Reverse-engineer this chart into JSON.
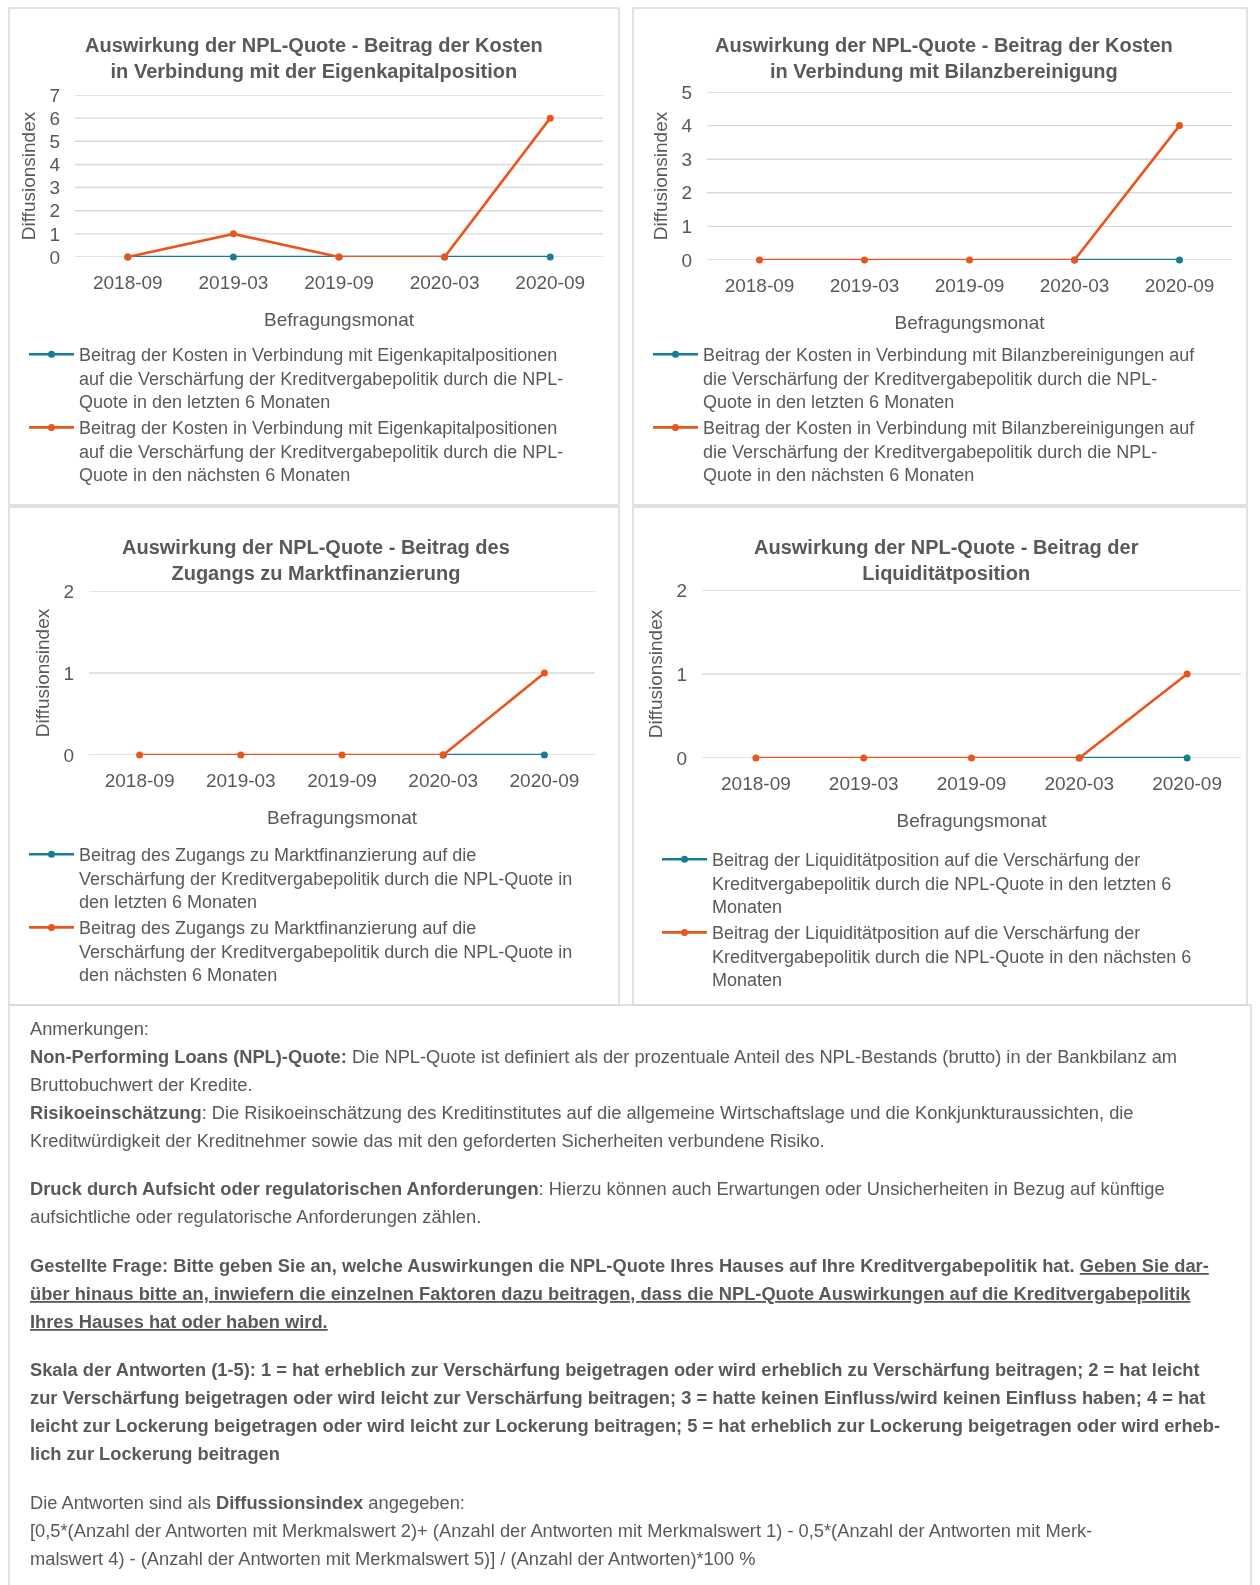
{
  "chart_data": [
    {
      "type": "line",
      "title": "Auswirkung der NPL-Quote - Beitrag der Kosten in Verbindung mit der Eigenkapitalposition",
      "xlabel": "Befragungsmonat",
      "ylabel": "Diffusionsindex",
      "categories": [
        "2018-09",
        "2019-03",
        "2019-09",
        "2020-03",
        "2020-09"
      ],
      "ylim": [
        0,
        7
      ],
      "yticks": [
        0,
        1,
        2,
        3,
        4,
        5,
        6,
        7
      ],
      "grid": "y",
      "legend": "bottom",
      "marker": "circle",
      "line_style": "solid",
      "series": [
        {
          "name": "Beitrag der Kosten in Verbindung mit Eigenkapitalpositionen auf die Verschärfung der Kreditvergabepolitik durch die NPL-Quote in den letzten 6 Monaten",
          "color": "#177c96",
          "values": [
            0,
            0,
            0,
            0,
            0
          ]
        },
        {
          "name": "Beitrag der Kosten in Verbindung mit Eigenkapitalpositionen auf die Verschärfung der Kreditvergabepolitik durch die NPL-Quote in den nächsten 6 Monaten",
          "color": "#e8561e",
          "values": [
            0,
            1,
            0,
            0,
            6
          ]
        }
      ]
    },
    {
      "type": "line",
      "title": "Auswirkung der NPL-Quote - Beitrag der Kosten in Verbindung mit Bilanzbereinigung",
      "xlabel": "Befragungsmonat",
      "ylabel": "Diffusionsindex",
      "categories": [
        "2018-09",
        "2019-03",
        "2019-09",
        "2020-03",
        "2020-09"
      ],
      "ylim": [
        0,
        5
      ],
      "yticks": [
        0,
        1,
        2,
        3,
        4,
        5
      ],
      "grid": "y",
      "legend": "bottom",
      "marker": "circle",
      "line_style": "solid",
      "series": [
        {
          "name": "Beitrag der Kosten in Verbindung mit Bilanzbereinigungen auf die Verschärfung der Kreditvergabepolitik durch die NPL-Quote in den letzten 6 Monaten",
          "color": "#177c96",
          "values": [
            null,
            null,
            null,
            0,
            0
          ]
        },
        {
          "name": "Beitrag der Kosten in Verbindung mit Bilanzbereinigungen auf die Verschärfung der Kreditvergabepolitik durch die NPL-Quote in den nächsten 6 Monaten",
          "color": "#e8561e",
          "values": [
            0,
            0,
            0,
            0,
            4
          ]
        }
      ]
    },
    {
      "type": "line",
      "title": "Auswirkung der NPL-Quote - Beitrag des Zugangs zu Marktfinanzierung",
      "xlabel": "Befragungsmonat",
      "ylabel": "Diffusionsindex",
      "categories": [
        "2018-09",
        "2019-03",
        "2019-09",
        "2020-03",
        "2020-09"
      ],
      "ylim": [
        0,
        2
      ],
      "yticks": [
        0,
        1,
        2
      ],
      "grid": "y",
      "legend": "bottom",
      "marker": "circle",
      "line_style": "solid",
      "series": [
        {
          "name": "Beitrag des Zugangs zu Marktfinanzierung auf die Verschärfung der Kreditvergabepolitik durch die NPL-Quote in den letzten 6 Monaten",
          "color": "#177c96",
          "values": [
            null,
            null,
            null,
            0,
            0
          ]
        },
        {
          "name": "Beitrag des Zugangs zu Marktfinanzierung auf die Verschärfung der Kreditvergabepolitik durch die NPL-Quote in den nächsten 6 Monaten",
          "color": "#e8561e",
          "values": [
            0,
            0,
            0,
            0,
            1
          ]
        }
      ]
    },
    {
      "type": "line",
      "title": "Auswirkung der NPL-Quote - Beitrag der Liquiditätposition",
      "xlabel": "Befragungsmonat",
      "ylabel": "Diffusionsindex",
      "categories": [
        "2018-09",
        "2019-03",
        "2019-09",
        "2020-03",
        "2020-09"
      ],
      "ylim": [
        0,
        2
      ],
      "yticks": [
        0,
        1,
        2
      ],
      "grid": "y",
      "legend": "bottom",
      "marker": "circle",
      "line_style": "solid",
      "series": [
        {
          "name": "Beitrag der Liquiditätposition auf die Verschärfung der Kreditvergabepolitik durch die NPL-Quote in den letzten 6 Monaten",
          "color": "#177c96",
          "values": [
            null,
            null,
            null,
            0,
            0
          ]
        },
        {
          "name": "Beitrag der Liquiditätposition auf die Verschärfung der Kreditvergabepolitik durch die NPL-Quote in den nächsten 6 Monaten",
          "color": "#e8561e",
          "values": [
            0,
            0,
            0,
            0,
            1
          ]
        }
      ]
    },
    {
      "type": "other",
      "annotations": [
        "Anmerkungen:\nNon-Performing Loans (NPL)-Quote: Die NPL-Quote ist definiert als der prozentuale Anteil des NPL-Bestands (brutto) in der Bankbilanz am\nBruttobuchwert der Kredite.\nRisikoeinschätzung: Die Risikoeinschätzung des Kreditinstitutes auf die allgemeine Wirtschaftslage und die Konkjunkturaussichten, die\nKreditwürdigkeit der Kreditnehmer sowie das mit den geforderten Sicherheiten verbundene Risiko.",
        "Druck durch Aufsicht oder regulatorischen Anforderungen: Hierzu können auch Erwartungen oder Unsicherheiten in Bezug auf künftige\naufsichtliche oder regulatorische Anforderungen zählen.",
        "Gestellte Frage: Bitte geben Sie an, welche Auswirkungen die NPL-Quote Ihres Hauses auf Ihre Kreditvergabepolitik hat. Geben Sie dar-\nüber hinaus bitte an, inwiefern die einzelnen Faktoren dazu beitragen, dass die NPL-Quote Auswirkungen auf die Kreditvergabepolitik\nIhres Hauses hat oder haben wird.",
        "Skala der Antworten (1-5): 1 = hat erheblich zur Verschärfung beigetragen oder wird erheblich zu Verschärfung beitragen; 2 = hat leicht\nzur Verschärfung beigetragen oder wird leicht zur Verschärfung beitragen; 3 = hatte keinen Einfluss/wird keinen Einfluss haben; 4 = hat\nleicht zur Lockerung beigetragen oder wird leicht zur Lockerung beitragen; 5 = hat erheblich zur Lockerung beigetragen oder wird erheb-\nlich zur Lockerung beitragen",
        "Die Antworten sind als Diffussionsindex angegeben:\n[0,5*(Anzahl der Antworten mit Merkmalswert 2)+ (Anzahl der Antworten mit Merkmalswert 1) - 0,5*(Anzahl der Antworten mit Merk-\nmalswert 4) - (Anzahl der Antworten mit Merkmalswert 5)] / (Anzahl der Antworten)*100 %"
      ]
    }
  ]
}
